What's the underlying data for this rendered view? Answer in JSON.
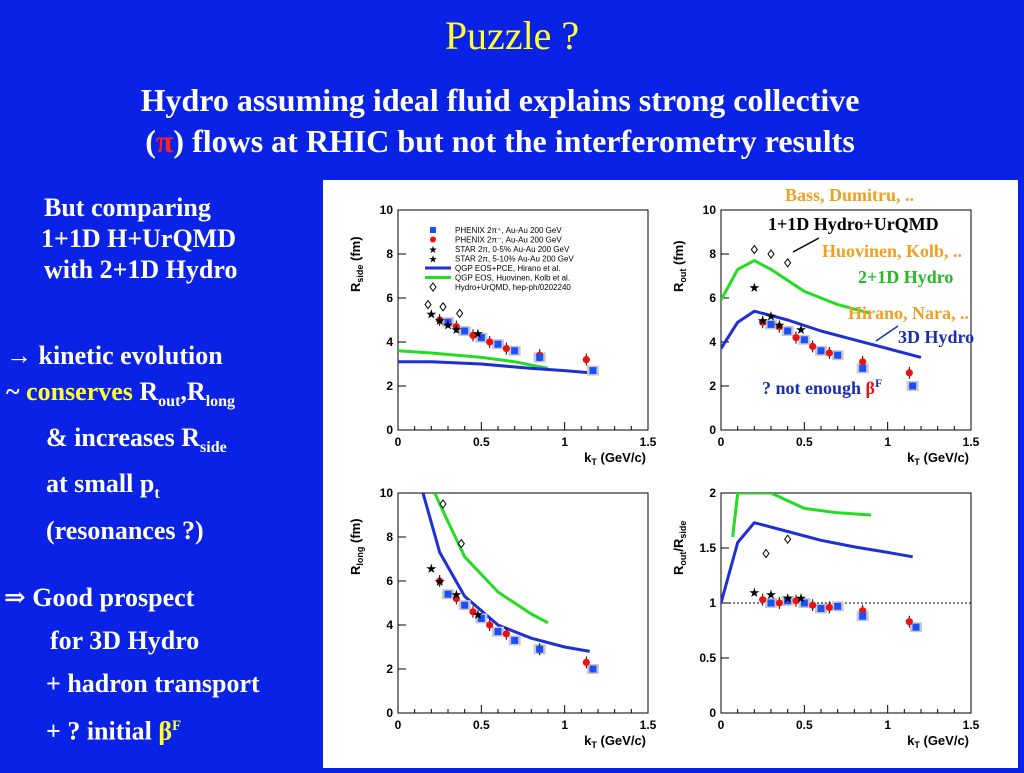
{
  "slide": {
    "title": "Puzzle ?",
    "subtitle_line1": "Hydro assuming ideal fluid explains strong collective",
    "subtitle_line2_pre": "(",
    "subtitle_pi": "π",
    "subtitle_line2_post": ") flows at RHIC but not the interferometry results"
  },
  "left_text": {
    "comparing": [
      "But comparing",
      "1+1D H+UrQMD",
      "with 2+1D Hydro"
    ],
    "kinetic": {
      "arrow": "→",
      "line1": "kinetic evolution",
      "tilde": "~ ",
      "conserves": "conserves",
      "r1": " R",
      "sub1": "out",
      "comma": ",R",
      "sub2": "long",
      "line3": "& increases R",
      "sub3": "side",
      "line4": "at small p",
      "sub4": "t",
      "line5": "(resonances ?)"
    },
    "prospect": {
      "arrow": "⇒",
      "line1": " Good prospect",
      "line2": "for 3D Hydro",
      "line3": "+ hadron transport",
      "line4_pre": "+ ? initial ",
      "beta": "β",
      "sup": "F"
    }
  },
  "annotations": {
    "bass": "Bass, Dumitru, ..",
    "urqmd": "1+1D Hydro+UrQMD",
    "huovinen": "Huovinen, Kolb, ..",
    "hydro2d": "2+1D Hydro",
    "hirano": "Hirano, Nara, ..",
    "hydro3d": "3D Hydro",
    "not_enough_pre": "? not enough ",
    "beta": "β",
    "sup": "F"
  },
  "legend": [
    "PHENIX 2π⁺, Au-Au 200 GeV",
    "PHENIX 2π⁻, Au-Au 200 GeV",
    "STAR 2π, 0-5% Au-Au 200 GeV",
    "STAR 2π, 5-10% Au-Au 200 GeV",
    "QGP EOS+PCE, Hirano et al.",
    "QGP EOS, Huovinen, Kolb et al.",
    "Hydro+UrQMD, hep-ph/0202240"
  ],
  "colors": {
    "phenix_pos": "#1a4fff",
    "phenix_neg": "#ee1111",
    "hirano": "#1f2fd6",
    "huovinen": "#22dd22",
    "star": "#000000"
  },
  "chart_data": [
    {
      "type": "scatter",
      "xlabel": "k_T (GeV/c)",
      "ylabel": "R_side (fm)",
      "xlim": [
        0,
        1.5
      ],
      "ylim": [
        0,
        10
      ],
      "xticks": [
        "0",
        "0.5",
        "1",
        "1.5"
      ],
      "yticks": [
        "0",
        "2",
        "4",
        "6",
        "8",
        "10"
      ],
      "ref_line": null,
      "series": {
        "phenix_pos": [
          [
            0.3,
            4.9
          ],
          [
            0.4,
            4.5
          ],
          [
            0.5,
            4.2
          ],
          [
            0.6,
            3.9
          ],
          [
            0.7,
            3.6
          ],
          [
            0.85,
            3.3
          ],
          [
            1.17,
            2.7
          ]
        ],
        "phenix_neg": [
          [
            0.25,
            5.0
          ],
          [
            0.35,
            4.7
          ],
          [
            0.45,
            4.3
          ],
          [
            0.55,
            4.0
          ],
          [
            0.65,
            3.7
          ],
          [
            0.85,
            3.4
          ],
          [
            1.13,
            3.2
          ]
        ],
        "star": [
          [
            0.2,
            5.3
          ],
          [
            0.25,
            5.0
          ],
          [
            0.3,
            4.8
          ],
          [
            0.35,
            4.6
          ],
          [
            0.48,
            4.4
          ]
        ],
        "urqmd": [
          [
            0.18,
            5.7
          ],
          [
            0.27,
            5.6
          ],
          [
            0.37,
            5.3
          ]
        ],
        "hirano": [
          [
            0,
            3.1
          ],
          [
            0.2,
            3.1
          ],
          [
            0.5,
            3.0
          ],
          [
            0.8,
            2.8
          ],
          [
            1.0,
            2.7
          ],
          [
            1.15,
            2.6
          ]
        ],
        "huovinen": [
          [
            0,
            3.6
          ],
          [
            0.2,
            3.5
          ],
          [
            0.5,
            3.3
          ],
          [
            0.7,
            3.1
          ],
          [
            0.9,
            2.8
          ]
        ]
      }
    },
    {
      "type": "scatter",
      "xlabel": "k_T (GeV/c)",
      "ylabel": "R_out (fm)",
      "xlim": [
        0,
        1.5
      ],
      "ylim": [
        0,
        10
      ],
      "xticks": [
        "0",
        "0.5",
        "1",
        "1.5"
      ],
      "yticks": [
        "0",
        "2",
        "4",
        "6",
        "8",
        "10"
      ],
      "ref_line": null,
      "series": {
        "phenix_pos": [
          [
            0.3,
            4.8
          ],
          [
            0.4,
            4.5
          ],
          [
            0.5,
            4.1
          ],
          [
            0.6,
            3.6
          ],
          [
            0.7,
            3.4
          ],
          [
            0.85,
            2.8
          ],
          [
            1.15,
            2.0
          ]
        ],
        "phenix_neg": [
          [
            0.25,
            4.9
          ],
          [
            0.35,
            4.7
          ],
          [
            0.45,
            4.2
          ],
          [
            0.55,
            3.8
          ],
          [
            0.65,
            3.5
          ],
          [
            0.85,
            3.1
          ],
          [
            1.13,
            2.6
          ]
        ],
        "star": [
          [
            0.2,
            6.5
          ],
          [
            0.25,
            5.0
          ],
          [
            0.3,
            5.2
          ],
          [
            0.35,
            4.8
          ],
          [
            0.48,
            4.6
          ]
        ],
        "urqmd": [
          [
            0.2,
            8.2
          ],
          [
            0.3,
            8.0
          ],
          [
            0.4,
            7.6
          ]
        ],
        "hirano": [
          [
            0,
            3.7
          ],
          [
            0.1,
            4.9
          ],
          [
            0.2,
            5.4
          ],
          [
            0.4,
            5.0
          ],
          [
            0.6,
            4.5
          ],
          [
            0.8,
            4.1
          ],
          [
            1.0,
            3.7
          ],
          [
            1.2,
            3.3
          ]
        ],
        "huovinen": [
          [
            0,
            5.9
          ],
          [
            0.1,
            7.3
          ],
          [
            0.2,
            7.7
          ],
          [
            0.3,
            7.3
          ],
          [
            0.5,
            6.3
          ],
          [
            0.7,
            5.7
          ],
          [
            0.9,
            5.3
          ]
        ]
      }
    },
    {
      "type": "scatter",
      "xlabel": "k_T (GeV/c)",
      "ylabel": "R_long (fm)",
      "xlim": [
        0,
        1.5
      ],
      "ylim": [
        0,
        10
      ],
      "xticks": [
        "0",
        "0.5",
        "1",
        "1.5"
      ],
      "yticks": [
        "0",
        "2",
        "4",
        "6",
        "8",
        "10"
      ],
      "ref_line": null,
      "series": {
        "phenix_pos": [
          [
            0.3,
            5.4
          ],
          [
            0.4,
            4.9
          ],
          [
            0.5,
            4.3
          ],
          [
            0.6,
            3.7
          ],
          [
            0.7,
            3.3
          ],
          [
            0.85,
            2.9
          ],
          [
            1.17,
            2.0
          ]
        ],
        "phenix_neg": [
          [
            0.25,
            6.0
          ],
          [
            0.35,
            5.2
          ],
          [
            0.45,
            4.6
          ],
          [
            0.55,
            4.0
          ],
          [
            0.65,
            3.6
          ],
          [
            0.85,
            2.9
          ],
          [
            1.13,
            2.3
          ]
        ],
        "star": [
          [
            0.2,
            6.6
          ],
          [
            0.25,
            6.0
          ],
          [
            0.35,
            5.4
          ],
          [
            0.48,
            4.5
          ]
        ],
        "urqmd": [
          [
            0.27,
            9.5
          ],
          [
            0.38,
            7.7
          ]
        ],
        "hirano": [
          [
            0.15,
            10.0
          ],
          [
            0.25,
            7.3
          ],
          [
            0.4,
            5.3
          ],
          [
            0.6,
            4.0
          ],
          [
            0.8,
            3.4
          ],
          [
            1.0,
            3.0
          ],
          [
            1.15,
            2.8
          ]
        ],
        "huovinen": [
          [
            0.22,
            10.0
          ],
          [
            0.3,
            8.7
          ],
          [
            0.4,
            7.1
          ],
          [
            0.6,
            5.5
          ],
          [
            0.8,
            4.5
          ],
          [
            0.9,
            4.1
          ]
        ]
      }
    },
    {
      "type": "scatter",
      "xlabel": "k_T (GeV/c)",
      "ylabel": "R_out/R_side",
      "xlim": [
        0,
        1.5
      ],
      "ylim": [
        0,
        2
      ],
      "xticks": [
        "0",
        "0.5",
        "1",
        "1.5"
      ],
      "yticks": [
        "0",
        "0.5",
        "1",
        "1.5",
        "2"
      ],
      "ref_line": 1,
      "series": {
        "phenix_pos": [
          [
            0.3,
            1.0
          ],
          [
            0.4,
            1.02
          ],
          [
            0.5,
            1.0
          ],
          [
            0.6,
            0.95
          ],
          [
            0.7,
            0.97
          ],
          [
            0.85,
            0.88
          ],
          [
            1.17,
            0.78
          ]
        ],
        "phenix_neg": [
          [
            0.25,
            1.03
          ],
          [
            0.35,
            1.0
          ],
          [
            0.45,
            1.02
          ],
          [
            0.55,
            0.98
          ],
          [
            0.65,
            0.96
          ],
          [
            0.85,
            0.93
          ],
          [
            1.13,
            0.83
          ]
        ],
        "star": [
          [
            0.2,
            1.1
          ],
          [
            0.3,
            1.08
          ],
          [
            0.4,
            1.05
          ],
          [
            0.48,
            1.05
          ]
        ],
        "urqmd": [
          [
            0.27,
            1.45
          ],
          [
            0.4,
            1.58
          ]
        ],
        "hirano": [
          [
            0,
            1.0
          ],
          [
            0.1,
            1.55
          ],
          [
            0.2,
            1.73
          ],
          [
            0.4,
            1.65
          ],
          [
            0.6,
            1.57
          ],
          [
            0.8,
            1.51
          ],
          [
            1.0,
            1.46
          ],
          [
            1.15,
            1.42
          ]
        ],
        "huovinen": [
          [
            0.07,
            1.6
          ],
          [
            0.1,
            2.0
          ],
          [
            0.3,
            2.0
          ],
          [
            0.5,
            1.86
          ],
          [
            0.7,
            1.82
          ],
          [
            0.9,
            1.8
          ]
        ]
      }
    }
  ]
}
